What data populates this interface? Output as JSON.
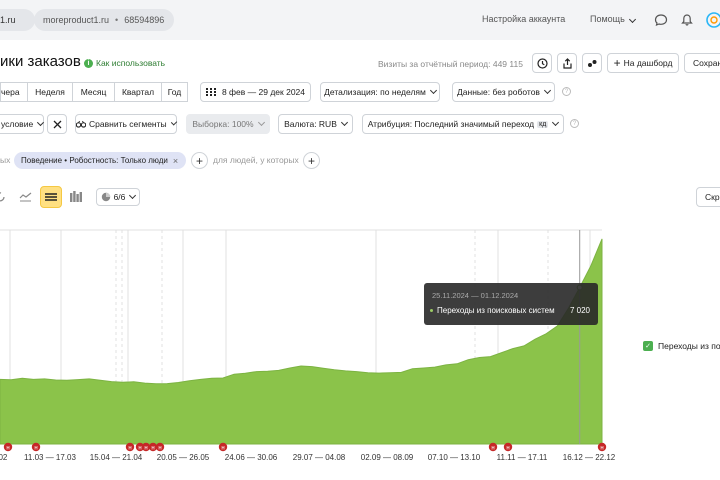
{
  "topbar": {
    "site_short": "1.ru",
    "counter_site": "moreproduct1.ru",
    "counter_sep": "•",
    "counter_id": "68594896",
    "account_settings": "Настройка аккаунта",
    "help": "Помощь"
  },
  "header": {
    "title": "ики заказов",
    "howto": "Как использовать",
    "visits": "Визиты за отчётный период: 449 115",
    "add_dashboard": "На дашборд",
    "save": "Сохран"
  },
  "period": {
    "tabs": [
      "чера",
      "Неделя",
      "Месяц",
      "Квартал",
      "Год"
    ],
    "date_range": "8 фев — 29 дек 2024",
    "detail": "Детализация: по неделям",
    "data": "Данные: без роботов"
  },
  "params": {
    "condition": "условие",
    "compare": "Сравнить сегменты",
    "sample": "Выборка: 100%",
    "currency": "Валюта: RUB",
    "attribution": "Атрибуция: Последний значимый переход",
    "attribution_badge": "кд"
  },
  "segments": {
    "prefix": "ых",
    "chip": "Поведение • Робостность: Только люди",
    "people_label": "для людей, у которых"
  },
  "chart_toolbar": {
    "series_count": "6/6",
    "right_button": "Скр"
  },
  "chart_data": {
    "type": "area",
    "y_label": "",
    "series": [
      {
        "name": "Переходы из поисковых систем",
        "color": "#8bc34a",
        "values": [
          2900,
          2880,
          2950,
          2900,
          2920,
          2870,
          2860,
          2890,
          2920,
          2860,
          2800,
          2770,
          2790,
          2730,
          2700,
          2710,
          2760,
          2840,
          2900,
          2950,
          2960,
          3130,
          3170,
          3250,
          3260,
          3300,
          3410,
          3500,
          3470,
          3400,
          3330,
          3280,
          3250,
          3200,
          3180,
          3200,
          3210,
          3380,
          3410,
          3450,
          3550,
          3600,
          3780,
          3880,
          3920,
          4100,
          4280,
          4400,
          4700,
          4950,
          5300,
          6100,
          7020,
          8000,
          9200
        ]
      }
    ],
    "x_tick_labels": [
      "02",
      "11.03 — 17.03",
      "15.04 — 21.04",
      "20.05 — 26.05",
      "24.06 — 30.06",
      "29.07 — 04.08",
      "02.09 — 08.09",
      "07.10 — 13.10",
      "11.11 — 17.11",
      "16.12 — 22.12"
    ],
    "grid": true,
    "legend": "right",
    "legend_label": "Переходы из поис",
    "tooltip": {
      "date": "25.11.2024 — 01.12.2024",
      "series": "Переходы из поисковых систем",
      "value": "7 020"
    },
    "marker_label": "н"
  }
}
